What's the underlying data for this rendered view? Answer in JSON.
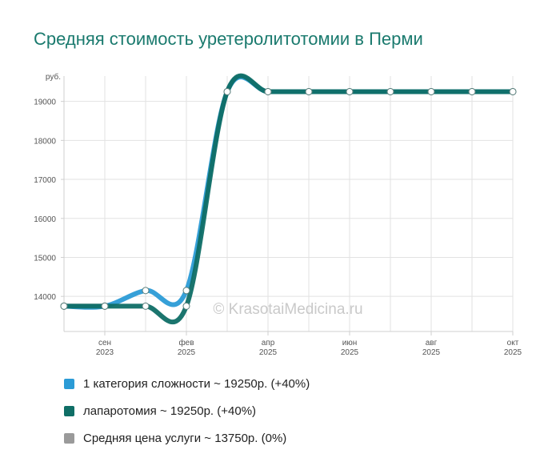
{
  "title": "Средняя стоимость уретеролитотомии в Перми",
  "watermark": "© KrasotaiMedicina.ru",
  "chart_data": {
    "type": "line",
    "ylabel": "руб.",
    "ylim": [
      13100,
      19650
    ],
    "y_ticks": [
      14000,
      15000,
      16000,
      17000,
      18000,
      19000
    ],
    "x_ticks": [
      {
        "idx": 1,
        "month": "сен",
        "year": "2023"
      },
      {
        "idx": 3,
        "month": "фев",
        "year": "2025"
      },
      {
        "idx": 5,
        "month": "апр",
        "year": "2025"
      },
      {
        "idx": 7,
        "month": "июн",
        "year": "2025"
      },
      {
        "idx": 9,
        "month": "авг",
        "year": "2025"
      },
      {
        "idx": 11,
        "month": "окт",
        "year": "2025"
      }
    ],
    "x_count": 12,
    "grid": true,
    "legend_position": "bottom",
    "series": [
      {
        "name": "1 категория сложности ~ 19250р. (+40%)",
        "color": "#2b9bd6",
        "values": [
          13750,
          13750,
          14150,
          14150,
          19250,
          19250,
          19250,
          19250,
          19250,
          19250,
          19250,
          19250
        ]
      },
      {
        "name": "лапаротомия ~ 19250р. (+40%)",
        "color": "#0f6e66",
        "values": [
          13750,
          13750,
          13750,
          13750,
          19250,
          19250,
          19250,
          19250,
          19250,
          19250,
          19250,
          19250
        ]
      },
      {
        "name": "Средняя цена услуги ~ 13750р. (0%)",
        "color": "#9a9a9a",
        "values": [
          13750,
          13750,
          null,
          null,
          null,
          null,
          null,
          null,
          null,
          null,
          null,
          null
        ]
      }
    ]
  }
}
